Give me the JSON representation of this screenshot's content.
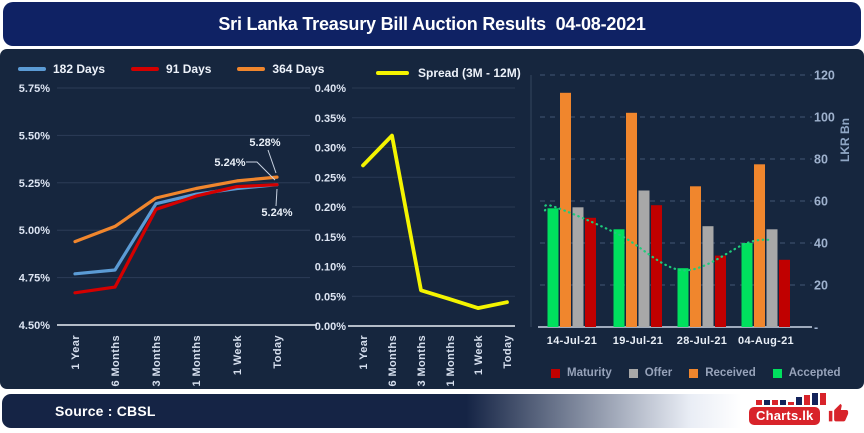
{
  "title": "Sri Lanka Treasury Bill Auction Results  04-08-2021",
  "footer": {
    "source": "Source : CBSL",
    "brand": "Charts.lk"
  },
  "colors": {
    "title_bar": "#0F2264",
    "panel": "#16263E",
    "footer_bar": "#152445",
    "blue": "#5B9BD5",
    "red": "#D40000",
    "orange": "#F0862D",
    "yellow": "#F4F400",
    "green": "#00E05E",
    "gray": "#A8A8A8",
    "bar_red": "#C00000",
    "trend": "#1FCB7C",
    "brand_red": "#D8232A"
  },
  "chart_data": [
    {
      "type": "line",
      "name": "yield-curves",
      "categories": [
        "1 Year",
        "6 Months",
        "3 Months",
        "1 Months",
        "1 Week",
        "Today"
      ],
      "series": [
        {
          "name": "182 Days",
          "color_key": "blue",
          "values": [
            4.77,
            4.79,
            5.14,
            5.19,
            5.22,
            5.24
          ]
        },
        {
          "name": "91 Days",
          "color_key": "red",
          "values": [
            4.67,
            4.7,
            5.11,
            5.18,
            5.23,
            5.24
          ]
        },
        {
          "name": "364 Days",
          "color_key": "orange",
          "values": [
            4.94,
            5.02,
            5.17,
            5.22,
            5.26,
            5.28
          ]
        }
      ],
      "ylim": [
        4.5,
        5.75
      ],
      "ytick_step": 0.25,
      "yticks": [
        "5.75%",
        "5.50%",
        "5.25%",
        "5.00%",
        "4.75%",
        "4.50%"
      ],
      "annotations": [
        {
          "text": "5.28%",
          "series": "364 Days",
          "category": "Today"
        },
        {
          "text": "5.24%",
          "series": "182 Days",
          "category": "Today"
        },
        {
          "text": "5.24%",
          "series": "91 Days",
          "category": "Today"
        }
      ],
      "grid": true,
      "legend_position": "top"
    },
    {
      "type": "line",
      "name": "spread",
      "categories": [
        "1 Year",
        "6 Months",
        "3 Months",
        "1 Months",
        "1 Week",
        "Today"
      ],
      "series": [
        {
          "name": "Spread (3M - 12M)",
          "color_key": "yellow",
          "values": [
            0.27,
            0.32,
            0.06,
            0.045,
            0.03,
            0.04
          ]
        }
      ],
      "ylim": [
        0,
        0.4
      ],
      "ytick_step": 0.05,
      "yticks": [
        "0.40%",
        "0.35%",
        "0.30%",
        "0.25%",
        "0.20%",
        "0.15%",
        "0.10%",
        "0.05%",
        "0.00%"
      ],
      "grid": true,
      "legend_position": "top"
    },
    {
      "type": "bar",
      "name": "auction-volumes",
      "categories": [
        "14-Jul-21",
        "19-Jul-21",
        "28-Jul-21",
        "04-Aug-21"
      ],
      "series": [
        {
          "name": "Maturity",
          "color_key": "bar_red",
          "values": [
            52,
            58,
            34,
            32
          ]
        },
        {
          "name": "Offer",
          "color_key": "gray",
          "values": [
            57,
            65,
            48,
            46.5
          ]
        },
        {
          "name": "Received",
          "color_key": "orange",
          "values": [
            111.5,
            102,
            67,
            77.5
          ]
        },
        {
          "name": "Accepted",
          "color_key": "green",
          "values": [
            56.5,
            46.5,
            28,
            40
          ]
        }
      ],
      "draw_order": [
        "Accepted",
        "Received",
        "Offer",
        "Maturity"
      ],
      "trend": {
        "name": "accepted-trend",
        "values": [
          57.5,
          44,
          27,
          40
        ]
      },
      "ylabel": "LKR Bn",
      "ylim": [
        0,
        120
      ],
      "ytick_step": 20,
      "yticks": [
        "120",
        "100",
        "80",
        "60",
        "40",
        "20",
        "-"
      ],
      "grid": "dashed",
      "legend_position": "bottom"
    }
  ]
}
